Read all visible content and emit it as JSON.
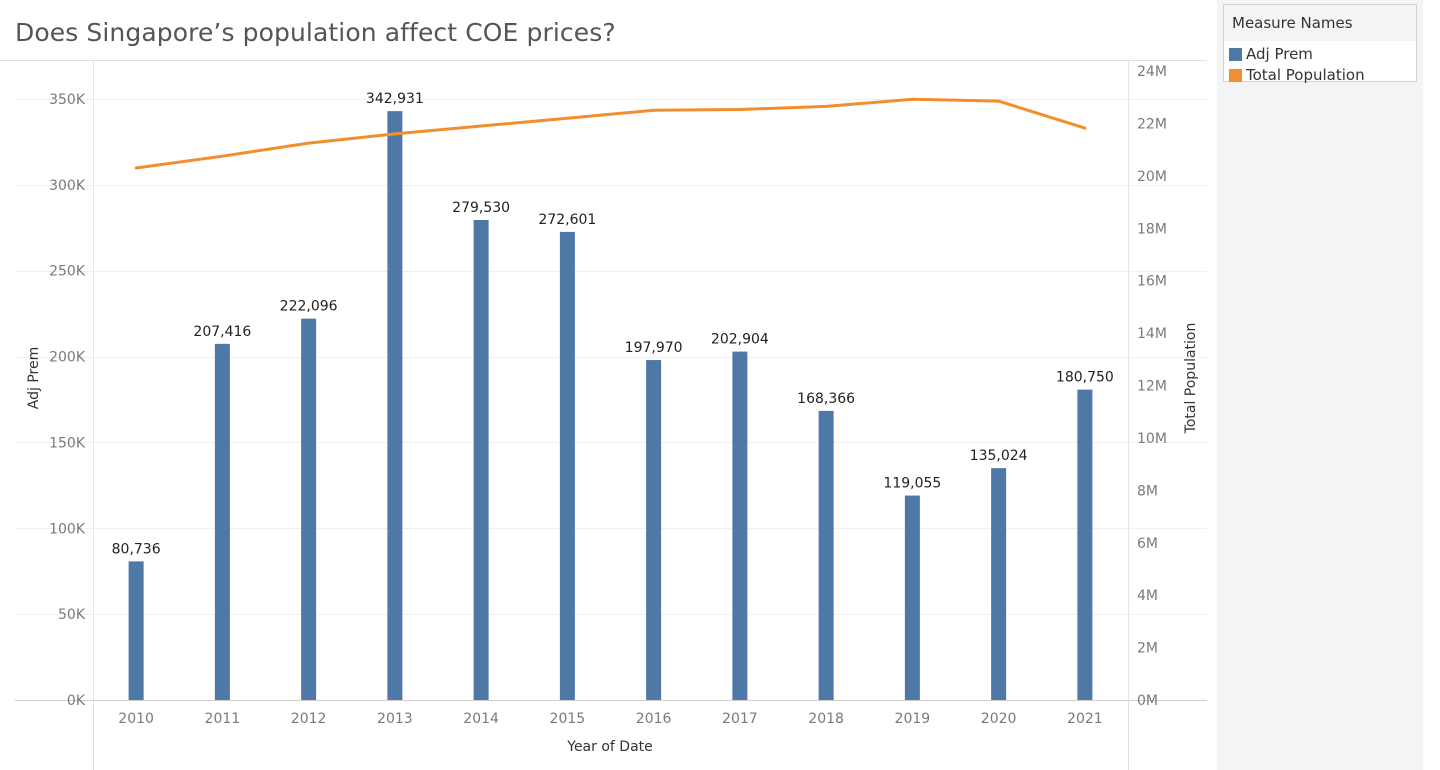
{
  "title": "Does Singapore’s population affect COE prices?",
  "legend": {
    "title": "Measure Names",
    "items": [
      {
        "label": "Adj Prem",
        "color": "#4e79a7"
      },
      {
        "label": "Total Population",
        "color": "#f28e2b"
      }
    ]
  },
  "chart_data": {
    "type": "bar",
    "xlabel": "Year of Date",
    "categories": [
      "2010",
      "2011",
      "2012",
      "2013",
      "2014",
      "2015",
      "2016",
      "2017",
      "2018",
      "2019",
      "2020",
      "2021"
    ],
    "series": [
      {
        "name": "Adj Prem",
        "type": "bar",
        "axis": "left",
        "color": "#4e79a7",
        "values": [
          80736,
          207416,
          222096,
          342931,
          279530,
          272601,
          197970,
          202904,
          168366,
          119055,
          135024,
          180750
        ],
        "labels": [
          "80,736",
          "207,416",
          "222,096",
          "342,931",
          "279,530",
          "272,601",
          "197,970",
          "202,904",
          "168,366",
          "119,055",
          "135,024",
          "180,750"
        ]
      },
      {
        "name": "Total Population",
        "type": "line",
        "axis": "right",
        "color": "#f28e2b",
        "values": [
          20300000,
          20750000,
          21250000,
          21600000,
          21900000,
          22200000,
          22500000,
          22530000,
          22650000,
          22920000,
          22850000,
          21820000
        ]
      }
    ],
    "y_left": {
      "label": "Adj Prem",
      "range": [
        0,
        350000
      ],
      "ticks": [
        0,
        50000,
        100000,
        150000,
        200000,
        250000,
        300000,
        350000
      ],
      "tick_labels": [
        "0K",
        "50K",
        "100K",
        "150K",
        "200K",
        "250K",
        "300K",
        "350K"
      ]
    },
    "y_right": {
      "label": "Total Population",
      "range": [
        0,
        24000000
      ],
      "ticks": [
        0,
        2000000,
        4000000,
        6000000,
        8000000,
        10000000,
        12000000,
        14000000,
        16000000,
        18000000,
        20000000,
        22000000,
        24000000
      ],
      "tick_labels": [
        "0M",
        "2M",
        "4M",
        "6M",
        "8M",
        "10M",
        "12M",
        "14M",
        "16M",
        "18M",
        "20M",
        "22M",
        "24M"
      ]
    },
    "grid": true
  }
}
